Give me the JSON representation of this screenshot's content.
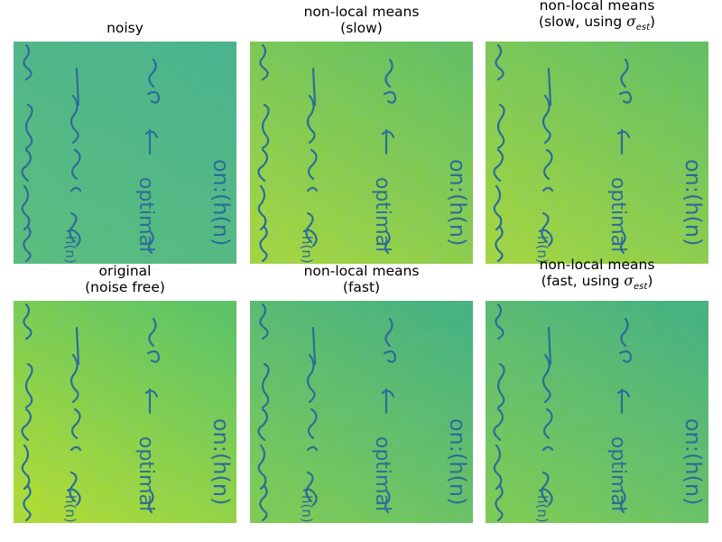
{
  "panels": [
    {
      "id": "noisy",
      "title_lines": [
        "noisy"
      ],
      "variant": "noisy"
    },
    {
      "id": "nlm-slow",
      "title_lines": [
        "non-local means",
        "(slow)"
      ],
      "variant": "smooth"
    },
    {
      "id": "nlm-slow-sigma",
      "title_lines": [
        "non-local means",
        "(slow, using "
      ],
      "sigma_suffix": ")",
      "variant": "smooth"
    },
    {
      "id": "original",
      "title_lines": [
        "original",
        "(noise free)"
      ],
      "variant": "original"
    },
    {
      "id": "nlm-fast",
      "title_lines": [
        "non-local means",
        "(fast)"
      ],
      "variant": "fast"
    },
    {
      "id": "nlm-fast-sigma",
      "title_lines": [
        "non-local means",
        "(fast, using "
      ],
      "sigma_suffix": ")",
      "variant": "fast"
    }
  ],
  "colors": {
    "ink": "#2c6d98",
    "noisy_base": "#46b07e",
    "yellow": "#b4dd2c",
    "green": "#5dc45f",
    "teal": "#2ea17c"
  },
  "math": {
    "sigma": "σ",
    "sigma_sub": "est"
  }
}
